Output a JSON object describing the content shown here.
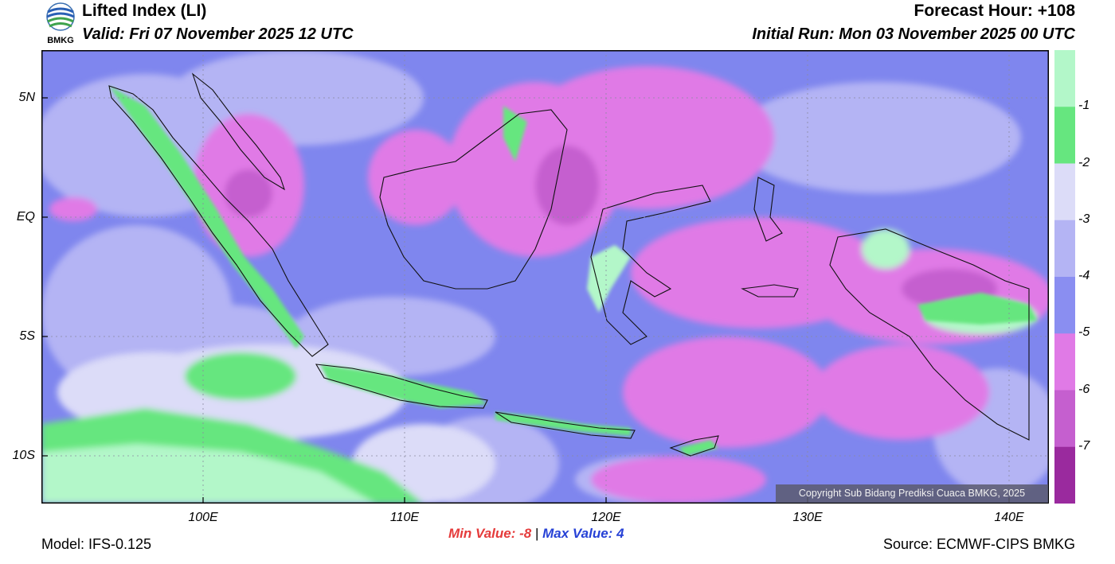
{
  "header": {
    "title": "Lifted Index (LI)",
    "valid": "Valid: Fri 07 November 2025 12 UTC",
    "forecast_hour": "Forecast Hour: +108",
    "initial_run": "Initial Run: Mon 03 November 2025 00 UTC",
    "logo_text": "BMKG"
  },
  "map": {
    "lat_ticks": [
      "5N",
      "EQ",
      "5S",
      "10S"
    ],
    "lon_ticks": [
      "100E",
      "110E",
      "120E",
      "130E",
      "140E"
    ],
    "copyright": "Copyright Sub Bidang Prediksi Cuaca BMKG, 2025",
    "background_color": "#7f86ee"
  },
  "colorbar": {
    "labels": [
      "-1",
      "-2",
      "-3",
      "-4",
      "-5",
      "-6",
      "-7"
    ],
    "colors": [
      "#b3f7c9",
      "#66e67f",
      "#dcdcf8",
      "#b4b4f4",
      "#8a8ef1",
      "#e07ae6",
      "#c55fcf",
      "#9a2a9e"
    ]
  },
  "stats": {
    "min_label": "Min Value:",
    "min_value": "-8",
    "separator": "|",
    "max_label": "Max Value:",
    "max_value": "4"
  },
  "footer": {
    "model": "Model: IFS-0.125",
    "source": "Source: ECMWF-CIPS BMKG"
  }
}
